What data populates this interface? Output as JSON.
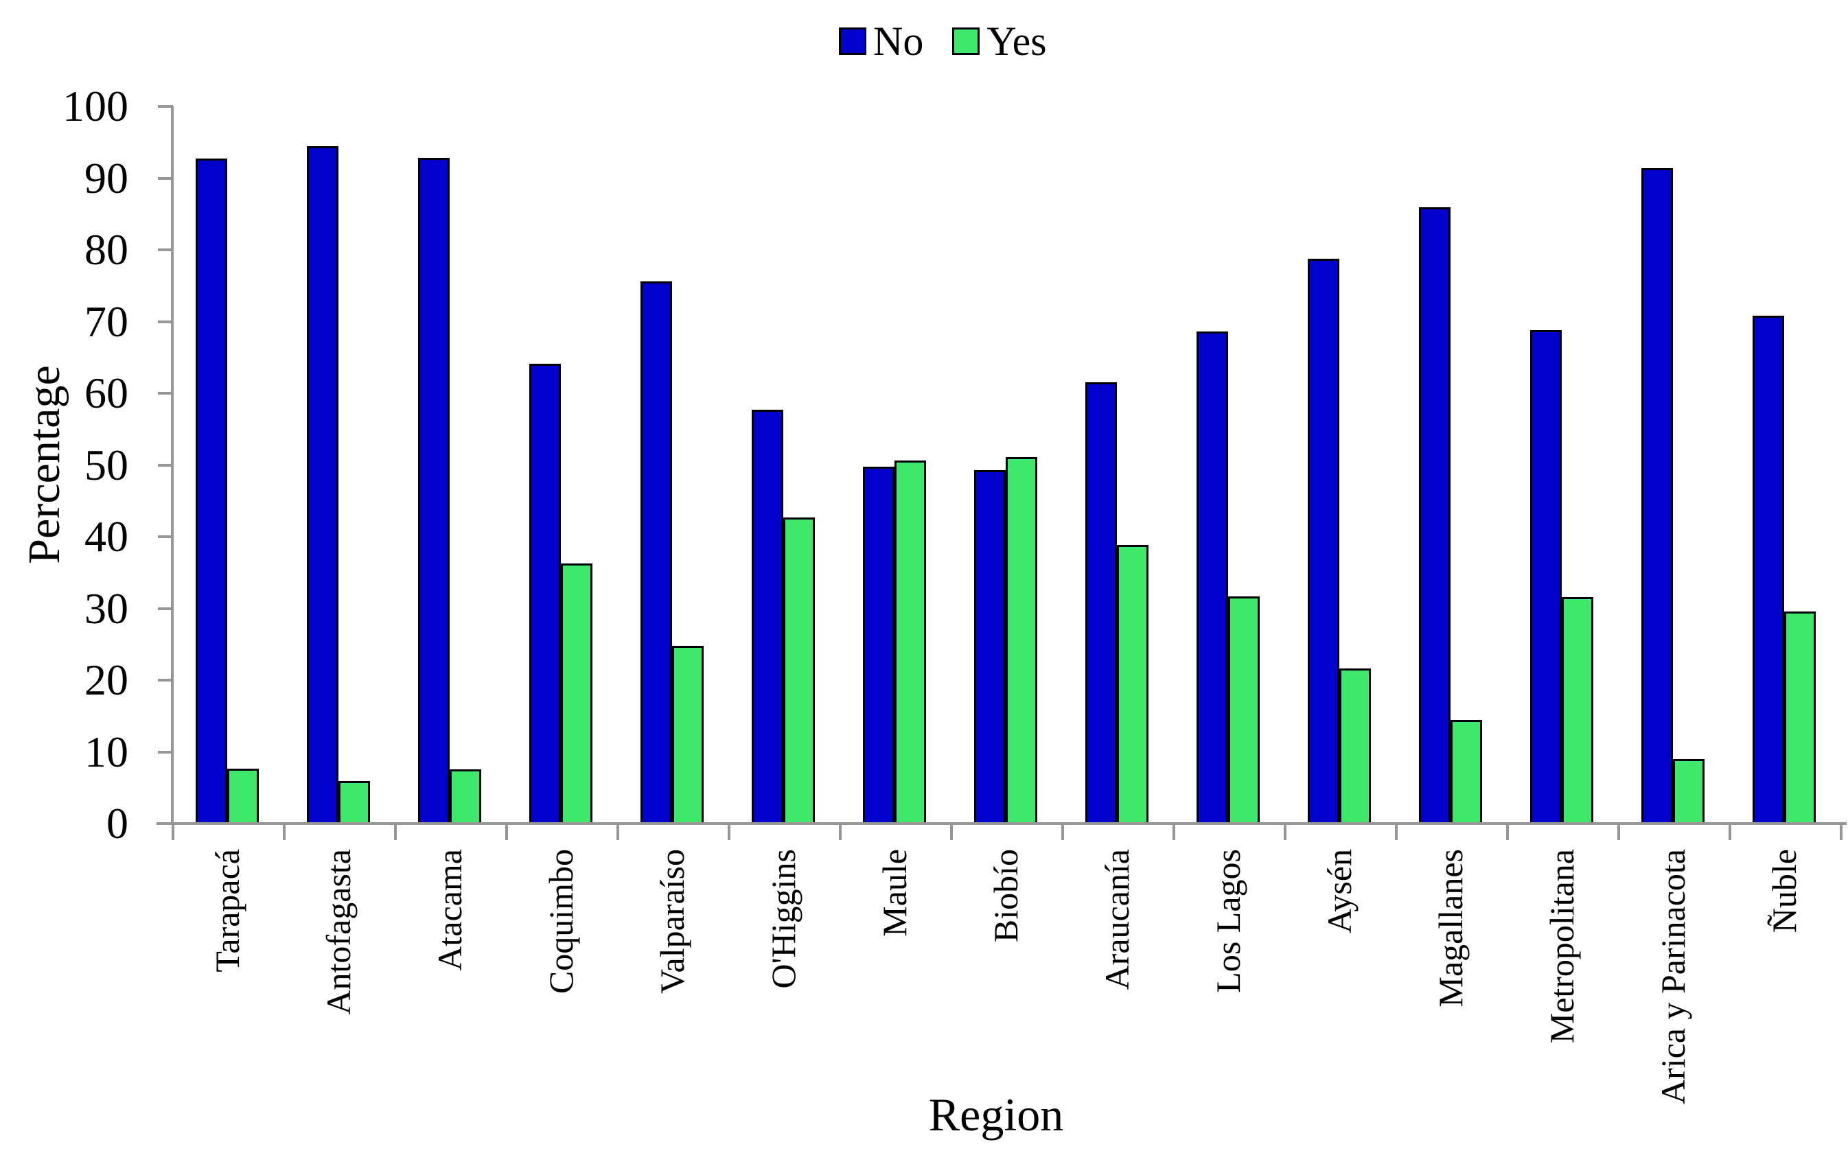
{
  "chart_data": {
    "type": "bar",
    "title": "",
    "xlabel": "Region",
    "ylabel": "Percentage",
    "ylim": [
      0,
      100
    ],
    "ytick_step": 10,
    "grid": false,
    "legend_position": "top-center",
    "axis_color": "#969696",
    "bar_border_color": "#000000",
    "categories": [
      "Tarapacá",
      "Antofagasta",
      "Atacama",
      "Coquimbo",
      "Valparaíso",
      "O'Higgins",
      "Maule",
      "Biobío",
      "Araucanía",
      "Los Lagos",
      "Aysén",
      "Magallanes",
      "Metropolitana",
      "Arica y Parinacota",
      "Ñuble"
    ],
    "series": [
      {
        "name": "No",
        "color": "#0101CD",
        "values": [
          92.5,
          94.3,
          92.6,
          63.9,
          75.4,
          57.5,
          49.6,
          49.1,
          61.3,
          68.4,
          78.6,
          85.7,
          68.6,
          91.2,
          70.6
        ]
      },
      {
        "name": "Yes",
        "color": "#3EE86A",
        "values": [
          7.5,
          5.7,
          7.4,
          36.1,
          24.6,
          42.5,
          50.4,
          50.9,
          38.7,
          31.5,
          21.4,
          14.3,
          31.4,
          8.8,
          29.4
        ]
      }
    ]
  }
}
